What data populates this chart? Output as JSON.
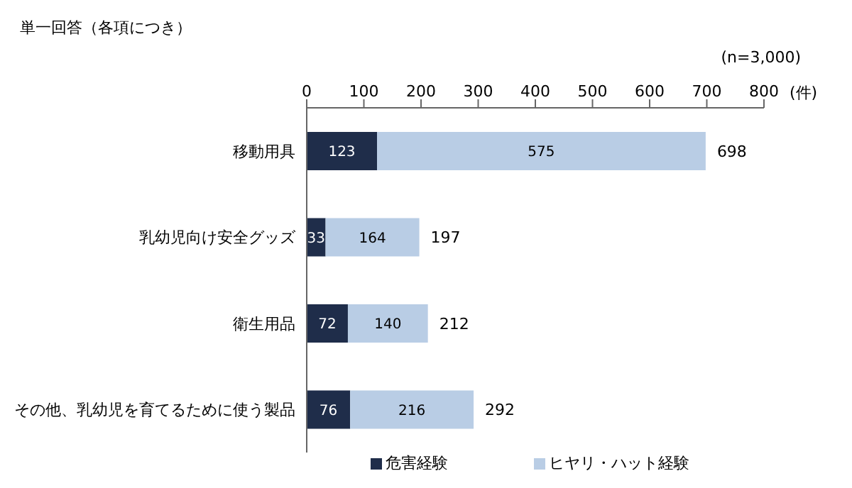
{
  "chart_data": {
    "type": "bar",
    "orientation": "horizontal",
    "stacked": true,
    "title": "単一回答（各項につき）",
    "annotations": [
      "(n=3,000)"
    ],
    "xlabel": "(件)",
    "categories": [
      "移動用具",
      "乳幼児向け安全グッズ",
      "衛生用品",
      "その他、乳幼児を育てるために使う製品"
    ],
    "series": [
      {
        "name": "危害経験",
        "color": "#1f2d4a",
        "values": [
          123,
          33,
          72,
          76
        ]
      },
      {
        "name": "ヒヤリ・ハット経験",
        "color": "#b9cde5",
        "values": [
          575,
          164,
          140,
          216
        ]
      }
    ],
    "totals": [
      "698",
      "197",
      "212",
      "292"
    ],
    "data_labels": true,
    "xlim": [
      0,
      800
    ],
    "xticks": [
      0,
      100,
      200,
      300,
      400,
      500,
      600,
      700,
      800
    ],
    "grid": false,
    "legend": "bottom"
  }
}
